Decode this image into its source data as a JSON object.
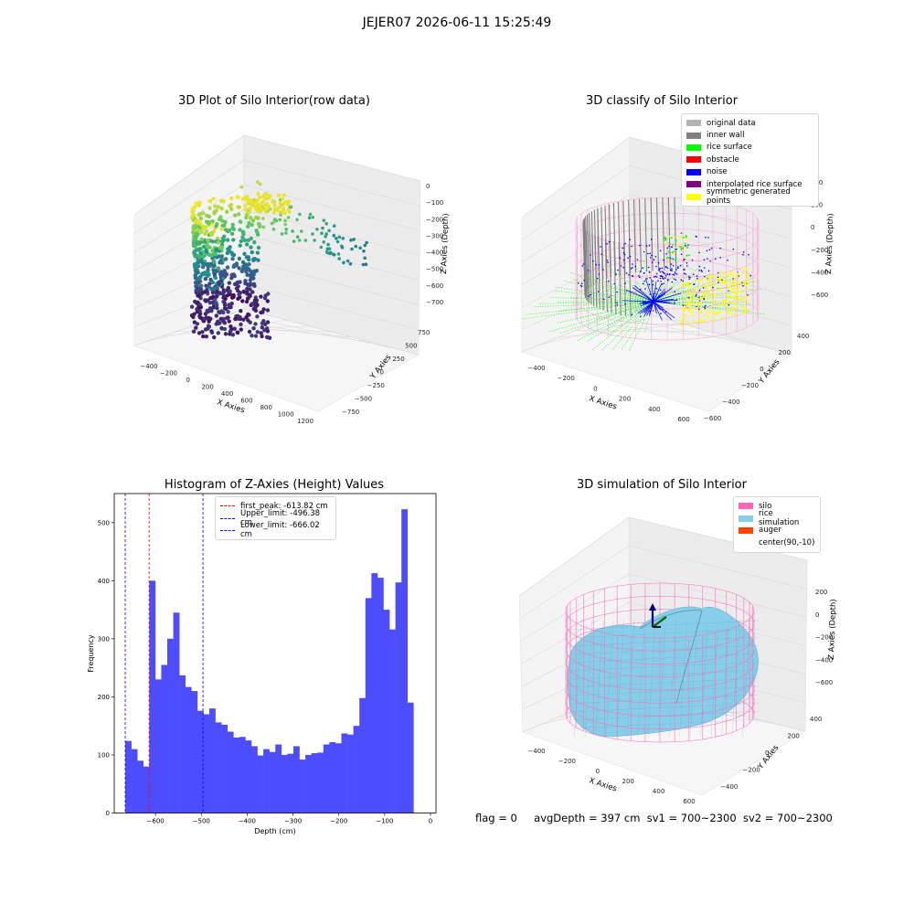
{
  "suptitle": "JEJER07 2026-06-11 15:25:49",
  "footer": {
    "flag": "flag = 0",
    "avg_depth": "avgDepth = 397 cm",
    "sv1": "sv1 = 700~2300",
    "sv2": "sv2 = 700~2300"
  },
  "colors": {
    "histogram_bar": "#4d4dff",
    "first_peak_line": "#ff0000",
    "limit_lines": "#0000ff",
    "silo": "#ff69b4",
    "rice_simulation": "#87ceeb",
    "auger": "#ff4500",
    "original_data": "#b3b3b3",
    "inner_wall": "#808080",
    "rice_surface": "#00ff00",
    "obstacle": "#ff0000",
    "noise": "#0000ff",
    "interpolated_rice_surface": "#800080",
    "symmetric_generated_points": "#ffff00"
  },
  "chart_data": [
    {
      "type": "scatter",
      "projection": "3d",
      "title": "3D Plot of Silo Interior(row data)",
      "xlabel": "X Axies",
      "ylabel": "Y Axies",
      "zlabel": "Z Axies (Depth)",
      "x_ticks": [
        "−400",
        "−200",
        "0",
        "200",
        "400",
        "600",
        "800",
        "1000",
        "1200"
      ],
      "y_ticks": [
        "−750",
        "−500",
        "−250",
        "0",
        "250",
        "500",
        "750"
      ],
      "z_ticks": [
        "0",
        "−100",
        "−200",
        "−300",
        "−400",
        "−500",
        "−600",
        "−700"
      ],
      "colormap": "viridis",
      "grid": true
    },
    {
      "type": "scatter",
      "projection": "3d",
      "title": "3D classify of Silo Interior",
      "xlabel": "X Axies",
      "ylabel": "Y Axies",
      "zlabel": "Z Axies (Depth)",
      "x_ticks": [
        "−400",
        "−200",
        "0",
        "200",
        "400",
        "600"
      ],
      "y_ticks": [
        "−600",
        "−400",
        "−200",
        "0",
        "200",
        "400"
      ],
      "z_ticks": [
        "400",
        "200",
        "0",
        "−200",
        "−400",
        "−600"
      ],
      "legend": [
        "original data",
        "inner wall",
        "rice surface",
        "obstacle",
        "noise",
        "interpolated rice surface",
        "symmetric generated points"
      ],
      "legend_placement": "upper-right",
      "grid": true
    },
    {
      "type": "bar",
      "title": "Histogram of Z-Axies (Height) Values",
      "xlabel": "Depth (cm)",
      "ylabel": "Frequency",
      "xlim": [
        -690,
        12
      ],
      "ylim": [
        0,
        550
      ],
      "x_ticks": [
        -600,
        -500,
        -400,
        -300,
        -200,
        -100,
        0
      ],
      "y_ticks": [
        0,
        100,
        200,
        300,
        400,
        500
      ],
      "bin_start": -666,
      "bin_width": 13.1,
      "values": [
        124,
        110,
        90,
        80,
        400,
        230,
        255,
        300,
        345,
        237,
        217,
        210,
        176,
        170,
        180,
        156,
        152,
        140,
        130,
        131,
        125,
        115,
        99,
        110,
        105,
        118,
        100,
        102,
        115,
        92,
        100,
        103,
        104,
        118,
        122,
        120,
        137,
        135,
        150,
        198,
        370,
        413,
        405,
        350,
        316,
        397,
        523,
        190
      ],
      "lines": [
        {
          "label": "first_peak: -613.82 cm",
          "x": -613.82,
          "color": "#ff0000"
        },
        {
          "label": "Upper_limit: -496.38 cm",
          "x": -496.38,
          "color": "#0000ff"
        },
        {
          "label": "Lower_limit: -666.02 cm",
          "x": -666.02,
          "color": "#0000ff"
        }
      ],
      "legend_placement": "upper-center"
    },
    {
      "type": "surface",
      "projection": "3d",
      "title": "3D simulation of Silo Interior",
      "xlabel": "X Axies",
      "ylabel": "Y Axies",
      "zlabel": "Z Axies (Depth)",
      "x_ticks": [
        "−400",
        "−200",
        "0",
        "200",
        "400",
        "600"
      ],
      "y_ticks": [
        "−400",
        "−200",
        "0",
        "200",
        "400"
      ],
      "z_ticks": [
        "200",
        "0",
        "−200",
        "−400",
        "−600"
      ],
      "legend": [
        "silo",
        "rice simulation",
        "auger",
        "center(90,-10)"
      ],
      "legend_placement": "upper-right",
      "grid": true
    }
  ]
}
